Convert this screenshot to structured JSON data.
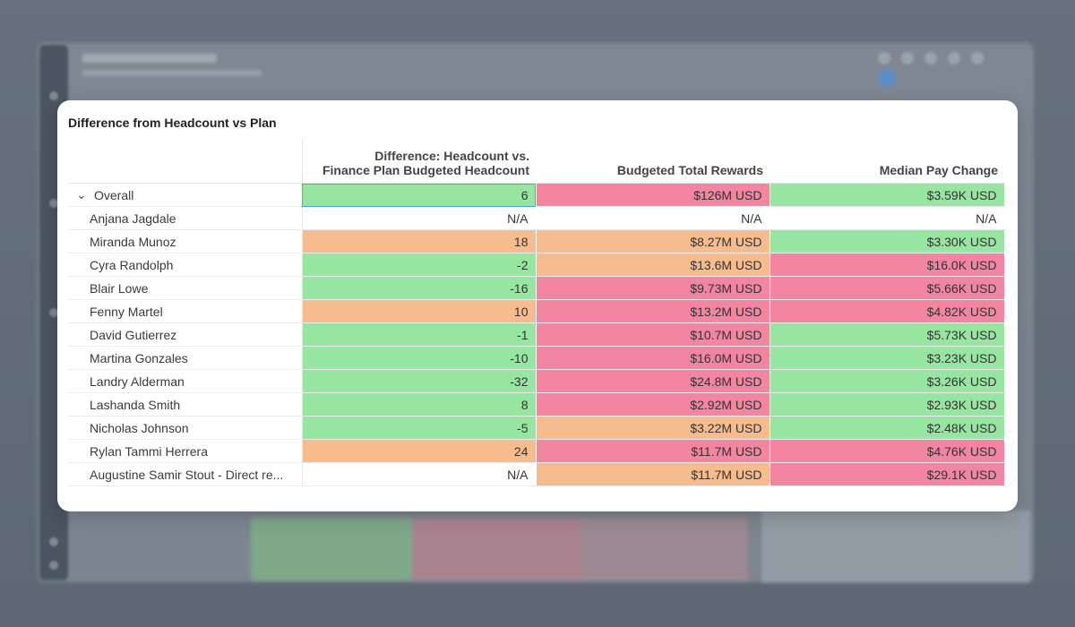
{
  "colors": {
    "green": "#96e5a0",
    "red": "#f2859f",
    "orange": "#f6bc8e"
  },
  "card": {
    "title": "Difference from Headcount vs Plan"
  },
  "table": {
    "headers": [
      "",
      "Difference: Headcount vs. Finance Plan Budgeted Headcount",
      "Budgeted Total Rewards",
      "Median Pay Change"
    ],
    "header_lines": {
      "diff_line1": "Difference: Headcount vs.",
      "diff_line2": "Finance Plan Budgeted Headcount",
      "rewards": "Budgeted Total Rewards",
      "pay": "Median Pay Change"
    },
    "rows": [
      {
        "name": "Overall",
        "diff": "6",
        "rewards": "$126M USD",
        "pay": "$3.59K USD",
        "c1": "green",
        "c2": "red",
        "c3": "green"
      },
      {
        "name": "Anjana Jagdale",
        "diff": "N/A",
        "rewards": "N/A",
        "pay": "N/A",
        "c1": "none",
        "c2": "none",
        "c3": "none"
      },
      {
        "name": "Miranda Munoz",
        "diff": "18",
        "rewards": "$8.27M USD",
        "pay": "$3.30K USD",
        "c1": "orange",
        "c2": "orange",
        "c3": "green"
      },
      {
        "name": "Cyra Randolph",
        "diff": "-2",
        "rewards": "$13.6M USD",
        "pay": "$16.0K USD",
        "c1": "green",
        "c2": "orange",
        "c3": "red"
      },
      {
        "name": "Blair Lowe",
        "diff": "-16",
        "rewards": "$9.73M USD",
        "pay": "$5.66K USD",
        "c1": "green",
        "c2": "red",
        "c3": "red"
      },
      {
        "name": "Fenny Martel",
        "diff": "10",
        "rewards": "$13.2M USD",
        "pay": "$4.82K USD",
        "c1": "orange",
        "c2": "red",
        "c3": "red"
      },
      {
        "name": "David Gutierrez",
        "diff": "-1",
        "rewards": "$10.7M USD",
        "pay": "$5.73K USD",
        "c1": "green",
        "c2": "red",
        "c3": "green"
      },
      {
        "name": "Martina Gonzales",
        "diff": "-10",
        "rewards": "$16.0M USD",
        "pay": "$3.23K USD",
        "c1": "green",
        "c2": "red",
        "c3": "green"
      },
      {
        "name": "Landry Alderman",
        "diff": "-32",
        "rewards": "$24.8M USD",
        "pay": "$3.26K USD",
        "c1": "green",
        "c2": "red",
        "c3": "green"
      },
      {
        "name": "Lashanda Smith",
        "diff": "8",
        "rewards": "$2.92M USD",
        "pay": "$2.93K USD",
        "c1": "green",
        "c2": "red",
        "c3": "green"
      },
      {
        "name": "Nicholas Johnson",
        "diff": "-5",
        "rewards": "$3.22M USD",
        "pay": "$2.48K USD",
        "c1": "green",
        "c2": "orange",
        "c3": "green"
      },
      {
        "name": "Rylan Tammi Herrera",
        "diff": "24",
        "rewards": "$11.7M USD",
        "pay": "$4.76K USD",
        "c1": "orange",
        "c2": "red",
        "c3": "red"
      },
      {
        "name": "Augustine Samir Stout - Direct re...",
        "diff": "N/A",
        "rewards": "$11.7M USD",
        "pay": "$29.1K USD",
        "c1": "none",
        "c2": "orange",
        "c3": "red"
      }
    ]
  }
}
